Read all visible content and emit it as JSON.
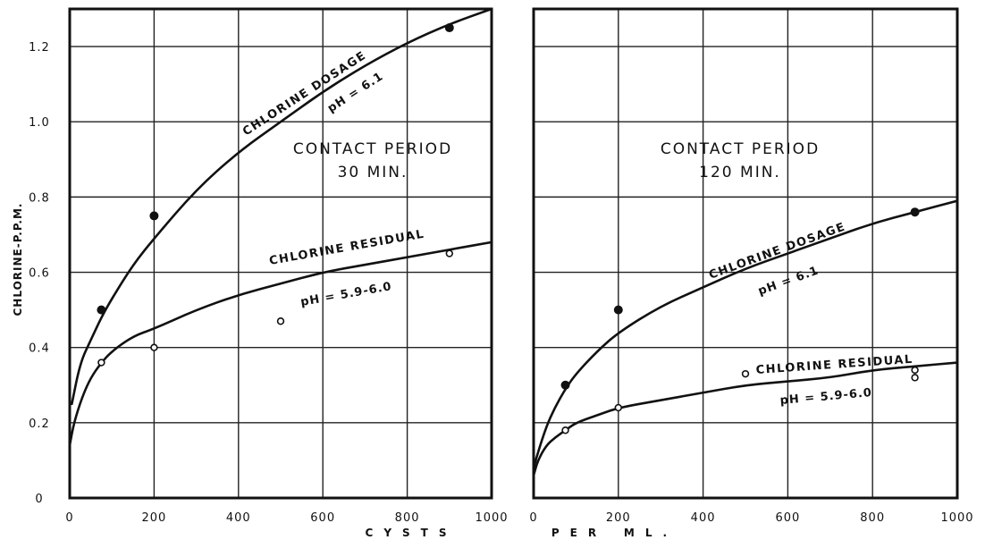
{
  "chart_data": [
    {
      "type": "line",
      "ylabel": "CHLORINE-P.P.M.",
      "xlim": [
        0,
        1000
      ],
      "ylim": [
        0,
        1.3
      ],
      "xticks": [
        "0",
        "200",
        "400",
        "600",
        "800",
        "1000"
      ],
      "yticks": [
        "0",
        "0.2",
        "0.4",
        "0.6",
        "0.8",
        "1.0",
        "1.2"
      ],
      "grid": true,
      "annotation": [
        "CONTACT PERIOD",
        "30 MIN."
      ],
      "series": [
        {
          "name": "CHLORINE DOSAGE",
          "ph": "pH = 6.1",
          "marker": "filled-circle",
          "points": [
            [
              75,
              0.5
            ],
            [
              200,
              0.75
            ],
            [
              900,
              1.25
            ]
          ],
          "curve": [
            [
              5,
              0.25
            ],
            [
              25,
              0.36
            ],
            [
              50,
              0.42
            ],
            [
              75,
              0.48
            ],
            [
              100,
              0.53
            ],
            [
              150,
              0.62
            ],
            [
              200,
              0.69
            ],
            [
              300,
              0.82
            ],
            [
              400,
              0.92
            ],
            [
              500,
              1.0
            ],
            [
              600,
              1.08
            ],
            [
              700,
              1.15
            ],
            [
              800,
              1.21
            ],
            [
              900,
              1.26
            ],
            [
              1000,
              1.3
            ]
          ]
        },
        {
          "name": "CHLORINE RESIDUAL",
          "ph": "pH = 5.9-6.0",
          "marker": "open-circle",
          "points": [
            [
              75,
              0.36
            ],
            [
              200,
              0.4
            ],
            [
              500,
              0.47
            ],
            [
              900,
              0.65
            ]
          ],
          "curve": [
            [
              0,
              0.14
            ],
            [
              10,
              0.2
            ],
            [
              30,
              0.27
            ],
            [
              50,
              0.32
            ],
            [
              75,
              0.36
            ],
            [
              100,
              0.39
            ],
            [
              150,
              0.43
            ],
            [
              200,
              0.45
            ],
            [
              300,
              0.5
            ],
            [
              400,
              0.54
            ],
            [
              500,
              0.57
            ],
            [
              600,
              0.6
            ],
            [
              700,
              0.62
            ],
            [
              800,
              0.64
            ],
            [
              900,
              0.66
            ],
            [
              1000,
              0.68
            ]
          ]
        }
      ]
    },
    {
      "type": "line",
      "xlim": [
        0,
        1000
      ],
      "ylim": [
        0,
        1.3
      ],
      "xticks": [
        "0",
        "200",
        "400",
        "600",
        "800",
        "1000"
      ],
      "grid": true,
      "annotation": [
        "CONTACT PERIOD",
        "120 MIN."
      ],
      "series": [
        {
          "name": "CHLORINE DOSAGE",
          "ph": "pH = 6.1",
          "marker": "filled-circle",
          "points": [
            [
              75,
              0.3
            ],
            [
              200,
              0.5
            ],
            [
              900,
              0.76
            ]
          ],
          "curve": [
            [
              0,
              0.08
            ],
            [
              10,
              0.12
            ],
            [
              30,
              0.19
            ],
            [
              50,
              0.24
            ],
            [
              75,
              0.29
            ],
            [
              100,
              0.33
            ],
            [
              150,
              0.39
            ],
            [
              200,
              0.44
            ],
            [
              300,
              0.51
            ],
            [
              400,
              0.56
            ],
            [
              500,
              0.61
            ],
            [
              600,
              0.65
            ],
            [
              700,
              0.69
            ],
            [
              800,
              0.73
            ],
            [
              900,
              0.76
            ],
            [
              1000,
              0.79
            ]
          ]
        },
        {
          "name": "CHLORINE RESIDUAL",
          "ph": "pH = 5.9-6.0",
          "marker": "open-circle",
          "points": [
            [
              75,
              0.18
            ],
            [
              200,
              0.24
            ],
            [
              500,
              0.33
            ],
            [
              900,
              0.34
            ],
            [
              900,
              0.32
            ]
          ],
          "curve": [
            [
              0,
              0.06
            ],
            [
              10,
              0.1
            ],
            [
              30,
              0.14
            ],
            [
              50,
              0.16
            ],
            [
              75,
              0.18
            ],
            [
              100,
              0.2
            ],
            [
              150,
              0.22
            ],
            [
              200,
              0.24
            ],
            [
              300,
              0.26
            ],
            [
              400,
              0.28
            ],
            [
              500,
              0.3
            ],
            [
              600,
              0.31
            ],
            [
              700,
              0.32
            ],
            [
              800,
              0.34
            ],
            [
              900,
              0.35
            ],
            [
              1000,
              0.36
            ]
          ]
        }
      ]
    }
  ],
  "xlabel": "CYSTS PER ML."
}
